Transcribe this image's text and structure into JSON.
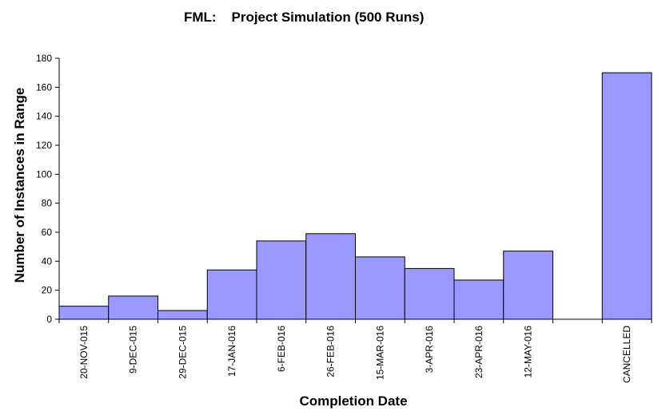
{
  "chart_data": {
    "type": "bar",
    "title": "FML:    Project Simulation (500 Runs)",
    "xlabel": "Completion Date",
    "ylabel": "Number of Instances in Range",
    "categories": [
      "20-NOV-015",
      "9-DEC-015",
      "29-DEC-015",
      "17-JAN-016",
      "6-FEB-016",
      "26-FEB-016",
      "15-MAR-016",
      "3-APR-016",
      "23-APR-016",
      "12-MAY-016",
      "",
      "CANCELLED"
    ],
    "values": [
      9,
      16,
      6,
      34,
      54,
      59,
      43,
      35,
      27,
      47,
      0,
      170
    ],
    "ylim": [
      0,
      180
    ],
    "yticks": [
      0,
      20,
      40,
      60,
      80,
      100,
      120,
      140,
      160,
      180
    ],
    "grid": false,
    "legend": "none",
    "colors": {
      "bar_fill": "#9999ff",
      "bar_stroke": "#000000"
    }
  }
}
